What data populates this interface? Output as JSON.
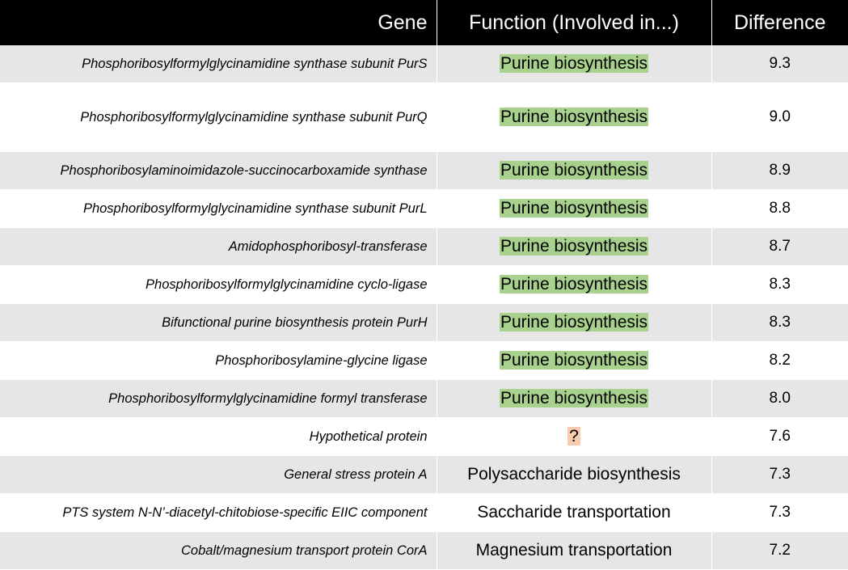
{
  "table": {
    "headers": {
      "gene": "Gene",
      "function": "Function (Involved in...)",
      "difference": "Difference"
    },
    "highlight_colors": {
      "purine": "#a9d18e",
      "unknown": "#f8cbad"
    },
    "rows": [
      {
        "gene": "Phosphoribosylformylglycinamidine synthase subunit PurS",
        "function": "Purine biosynthesis",
        "difference": "9.3",
        "highlight": "green"
      },
      {
        "gene": "Phosphoribosylformylglycinamidine synthase subunit PurQ",
        "function": "Purine biosynthesis",
        "difference": "9.0",
        "highlight": "green"
      },
      {
        "gene": "Phosphoribosylaminoimidazole-succinocarboxamide synthase",
        "function": "Purine biosynthesis",
        "difference": "8.9",
        "highlight": "green"
      },
      {
        "gene": "Phosphoribosylformylglycinamidine synthase subunit PurL",
        "function": "Purine biosynthesis",
        "difference": "8.8",
        "highlight": "green"
      },
      {
        "gene": "Amidophosphoribosyl-transferase",
        "function": "Purine biosynthesis",
        "difference": "8.7",
        "highlight": "green"
      },
      {
        "gene": "Phosphoribosylformylglycinamidine cyclo-ligase",
        "function": "Purine biosynthesis",
        "difference": "8.3",
        "highlight": "green"
      },
      {
        "gene": "Bifunctional purine biosynthesis protein PurH",
        "function": "Purine biosynthesis",
        "difference": "8.3",
        "highlight": "green"
      },
      {
        "gene": "Phosphoribosylamine-glycine ligase",
        "function": "Purine biosynthesis",
        "difference": "8.2",
        "highlight": "green"
      },
      {
        "gene": "Phosphoribosylformylglycinamidine formyl transferase",
        "function": "Purine biosynthesis",
        "difference": "8.0",
        "highlight": "green"
      },
      {
        "gene": "Hypothetical protein",
        "function": "?",
        "difference": "7.6",
        "highlight": "peach"
      },
      {
        "gene": "General stress protein A",
        "function": "Polysaccharide biosynthesis",
        "difference": "7.3",
        "highlight": "none"
      },
      {
        "gene": "PTS system N-N’-diacetyl-chitobiose-specific EIIC component",
        "function": "Saccharide transportation",
        "difference": "7.3",
        "highlight": "none"
      },
      {
        "gene": "Cobalt/magnesium transport protein CorA",
        "function": "Magnesium transportation",
        "difference": "7.2",
        "highlight": "none"
      }
    ]
  }
}
